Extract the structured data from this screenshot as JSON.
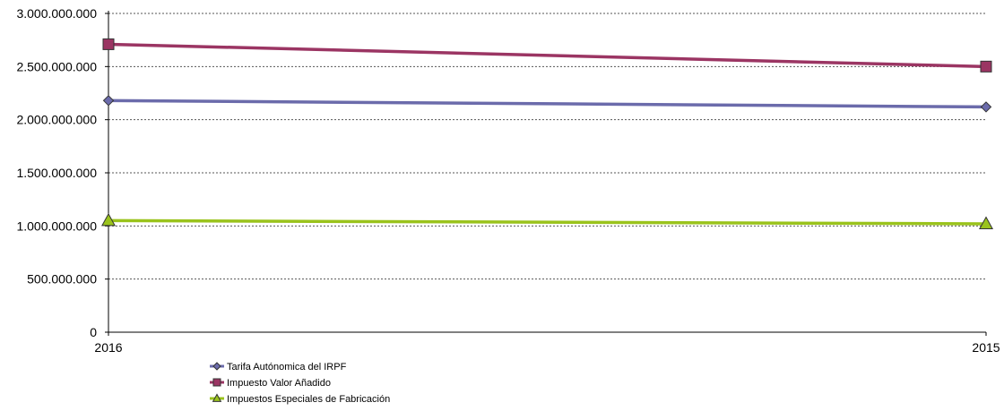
{
  "chart_data": {
    "type": "line",
    "title": "",
    "xlabel": "",
    "ylabel": "",
    "categories": [
      "2016",
      "2015"
    ],
    "ylim": [
      0,
      3000000000
    ],
    "yticks": [
      0,
      500000000,
      1000000000,
      1500000000,
      2000000000,
      2500000000,
      3000000000
    ],
    "ytick_labels": [
      "0",
      "500.000.000",
      "1.000.000.000",
      "1.500.000.000",
      "2.000.000.000",
      "2.500.000.000",
      "3.000.000.000"
    ],
    "grid": "horizontal-dotted",
    "legend_position": "bottom-left",
    "series": [
      {
        "name": "Tarifa Autónomica del IRPF",
        "values": [
          2180000000,
          2120000000
        ],
        "color": "#6b6bab",
        "marker": "diamond"
      },
      {
        "name": "Impuesto Valor Añadido",
        "values": [
          2710000000,
          2500000000
        ],
        "color": "#9b3563",
        "marker": "square"
      },
      {
        "name": "Impuestos Especiales de Fabricación",
        "values": [
          1050000000,
          1020000000
        ],
        "color": "#9ac31c",
        "marker": "triangle"
      }
    ]
  }
}
